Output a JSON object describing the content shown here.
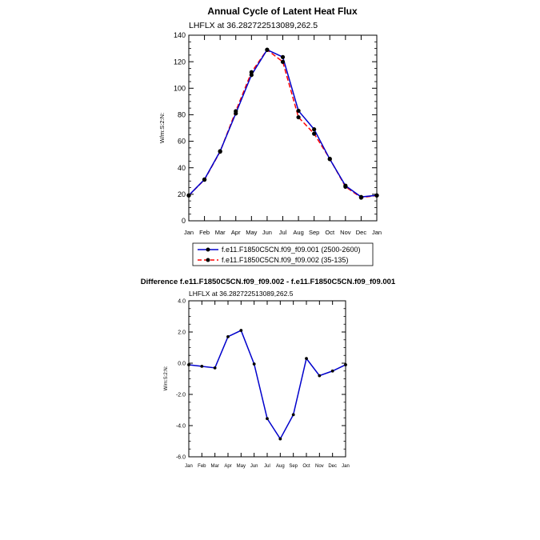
{
  "chart_data": [
    {
      "type": "line",
      "title": "Annual Cycle of Latent Heat Flux",
      "subtitle": "LHFLX at 36.282722513089,262.5",
      "ylabel": "W/m:S:2:N:",
      "ylim": [
        0,
        140
      ],
      "yticks": [
        "0",
        "20",
        "40",
        "60",
        "80",
        "100",
        "120",
        "140"
      ],
      "categories": [
        "Jan",
        "Feb",
        "Mar",
        "Apr",
        "May",
        "Jun",
        "Jul",
        "Aug",
        "Sep",
        "Oct",
        "Nov",
        "Dec",
        "Jan"
      ],
      "series": [
        {
          "name": "f.e11.F1850C5CN.f09_f09.001 (2500-2600)",
          "color": "#0000cc",
          "dash": "solid",
          "values": [
            19.2,
            31.2,
            52.5,
            81.0,
            110.0,
            129.0,
            123.5,
            83.0,
            69.0,
            46.5,
            26.5,
            18.0,
            19.2
          ]
        },
        {
          "name": "f.e11.F1850C5CN.f09_f09.002 (35-135)",
          "color": "#ff0000",
          "dash": "dashed",
          "values": [
            19.1,
            31.0,
            52.2,
            82.7,
            112.1,
            129.0,
            119.9,
            78.1,
            65.7,
            46.8,
            25.7,
            17.5,
            19.1
          ]
        }
      ]
    },
    {
      "type": "line",
      "title": "Difference f.e11.F1850C5CN.f09_f09.002 - f.e11.F1850C5CN.f09_f09.001",
      "subtitle": "LHFLX at 36.282722513089,262.5",
      "ylabel": "W/m:S:2:N:",
      "ylim": [
        -6,
        4
      ],
      "yticks": [
        "-6.0",
        "-4.0",
        "-2.0",
        "0.0",
        "2.0",
        "4.0"
      ],
      "categories": [
        "Jan",
        "Feb",
        "Mar",
        "Apr",
        "May",
        "Jun",
        "Jul",
        "Aug",
        "Sep",
        "Oct",
        "Nov",
        "Dec",
        "Jan"
      ],
      "series": [
        {
          "name": "Difference",
          "color": "#0000cc",
          "dash": "solid",
          "values": [
            -0.1,
            -0.2,
            -0.3,
            1.7,
            2.1,
            -0.05,
            -3.55,
            -4.85,
            -3.3,
            0.3,
            -0.8,
            -0.5,
            -0.1
          ]
        }
      ]
    }
  ]
}
